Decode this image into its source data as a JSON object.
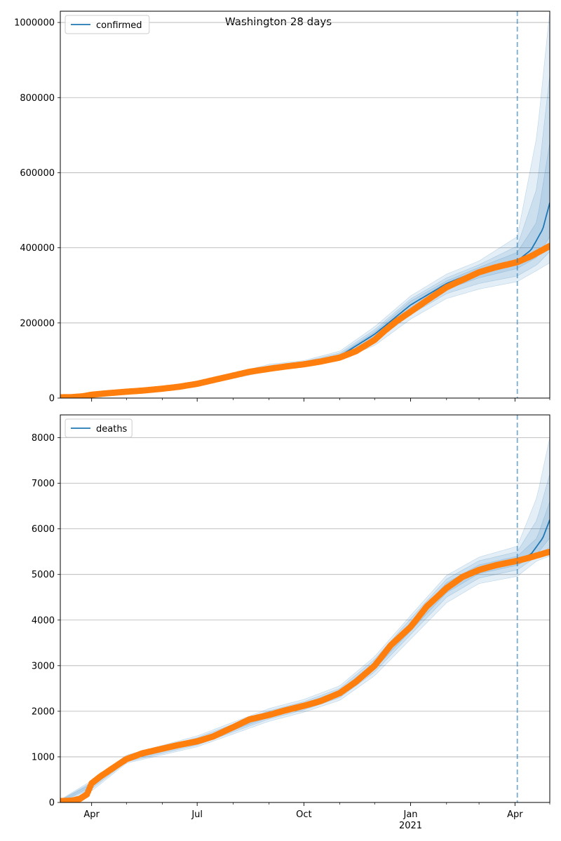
{
  "figure": {
    "title": "Washington 28 days"
  },
  "colors": {
    "model_line": "#1f77b4",
    "band": "#1f77b4",
    "observed": "#ff7f0e",
    "cutoff": "#1f77b4",
    "grid": "#b0b0b0"
  },
  "x_axis": {
    "tick_labels": [
      {
        "date": "2020-04-01",
        "label": "Apr",
        "sub": ""
      },
      {
        "date": "2020-07-01",
        "label": "Jul",
        "sub": ""
      },
      {
        "date": "2020-10-01",
        "label": "Oct",
        "sub": ""
      },
      {
        "date": "2021-01-01",
        "label": "Jan",
        "sub": "2021"
      },
      {
        "date": "2021-04-01",
        "label": "Apr",
        "sub": ""
      }
    ],
    "minor_ticks": [
      "2020-05-01",
      "2020-06-01",
      "2020-08-01",
      "2020-09-01",
      "2020-11-01",
      "2020-12-01",
      "2021-02-01",
      "2021-03-01",
      "2021-05-01"
    ],
    "xlim": [
      "2020-03-05",
      "2021-05-01"
    ],
    "forecast_cutoff": "2021-04-03"
  },
  "chart_data": [
    {
      "type": "line",
      "legend": "confirmed",
      "legend_position": "upper-left",
      "ylim": [
        0,
        1030000
      ],
      "yticks": [
        0,
        200000,
        400000,
        600000,
        800000,
        1000000
      ],
      "grid": "y",
      "model": {
        "name": "confirmed",
        "x": [
          "2020-03-05",
          "2020-04-01",
          "2020-05-01",
          "2020-06-01",
          "2020-07-01",
          "2020-08-01",
          "2020-09-01",
          "2020-10-01",
          "2020-11-01",
          "2020-12-01",
          "2021-01-01",
          "2021-02-01",
          "2021-03-01",
          "2021-04-03",
          "2021-04-15",
          "2021-04-25",
          "2021-05-01"
        ],
        "y": [
          2000,
          9000,
          18000,
          26000,
          37000,
          62000,
          80000,
          92000,
          112000,
          170000,
          248000,
          305000,
          340000,
          365000,
          395000,
          450000,
          520000
        ]
      },
      "bands": [
        {
          "x": [
            "2020-03-05",
            "2020-07-01",
            "2020-09-01",
            "2020-10-01",
            "2020-11-01",
            "2020-12-01",
            "2021-01-01",
            "2021-02-01",
            "2021-03-01",
            "2021-04-03",
            "2021-04-20",
            "2021-05-01"
          ],
          "lower": [
            0,
            32000,
            72000,
            86000,
            102000,
            140000,
            210000,
            265000,
            290000,
            310000,
            340000,
            360000
          ],
          "upper": [
            4000,
            42000,
            90000,
            100000,
            125000,
            190000,
            272000,
            330000,
            365000,
            430000,
            700000,
            1030000
          ]
        },
        {
          "x": [
            "2020-03-05",
            "2020-07-01",
            "2020-09-01",
            "2020-10-01",
            "2020-11-01",
            "2020-12-01",
            "2021-01-01",
            "2021-02-01",
            "2021-03-01",
            "2021-04-03",
            "2021-04-20",
            "2021-05-01"
          ],
          "lower": [
            1000,
            34000,
            75000,
            88000,
            106000,
            150000,
            222000,
            278000,
            305000,
            325000,
            355000,
            390000
          ],
          "upper": [
            3500,
            40000,
            86000,
            97000,
            120000,
            182000,
            264000,
            320000,
            355000,
            405000,
            560000,
            860000
          ]
        },
        {
          "x": [
            "2020-03-05",
            "2020-07-01",
            "2020-09-01",
            "2020-10-01",
            "2020-11-01",
            "2020-12-01",
            "2021-01-01",
            "2021-02-01",
            "2021-03-01",
            "2021-04-03",
            "2021-04-20",
            "2021-05-01"
          ],
          "lower": [
            1500,
            35500,
            77000,
            90000,
            109000,
            160000,
            235000,
            290000,
            320000,
            345000,
            375000,
            430000
          ],
          "upper": [
            3000,
            38500,
            83000,
            94000,
            116000,
            176000,
            258000,
            312000,
            348000,
            388000,
            470000,
            680000
          ]
        }
      ],
      "observed": {
        "name": "observed",
        "x": [
          "2020-03-05",
          "2020-03-15",
          "2020-03-25",
          "2020-04-01",
          "2020-04-15",
          "2020-05-01",
          "2020-05-15",
          "2020-06-01",
          "2020-06-15",
          "2020-07-01",
          "2020-07-15",
          "2020-08-01",
          "2020-08-15",
          "2020-09-01",
          "2020-09-15",
          "2020-10-01",
          "2020-10-15",
          "2020-11-01",
          "2020-11-15",
          "2020-12-01",
          "2020-12-10",
          "2020-12-20",
          "2021-01-01",
          "2021-01-15",
          "2021-02-01",
          "2021-02-15",
          "2021-03-01",
          "2021-03-15",
          "2021-04-03",
          "2021-04-15",
          "2021-05-01"
        ],
        "y": [
          2000,
          2500,
          5000,
          9000,
          13000,
          17000,
          20000,
          25000,
          30000,
          38000,
          48000,
          60000,
          70000,
          78000,
          84000,
          90000,
          97000,
          108000,
          125000,
          155000,
          180000,
          205000,
          230000,
          260000,
          295000,
          315000,
          335000,
          348000,
          362000,
          378000,
          405000
        ]
      }
    },
    {
      "type": "line",
      "legend": "deaths",
      "legend_position": "upper-left",
      "ylim": [
        0,
        8500
      ],
      "yticks": [
        0,
        1000,
        2000,
        3000,
        4000,
        5000,
        6000,
        7000,
        8000
      ],
      "grid": "y",
      "model": {
        "name": "deaths",
        "x": [
          "2020-03-05",
          "2020-03-20",
          "2020-03-28",
          "2020-04-01",
          "2020-04-15",
          "2020-05-01",
          "2020-05-15",
          "2020-06-01",
          "2020-06-15",
          "2020-07-01",
          "2020-07-15",
          "2020-08-01",
          "2020-08-15",
          "2020-09-01",
          "2020-09-15",
          "2020-10-01",
          "2020-10-15",
          "2020-11-01",
          "2020-11-15",
          "2020-12-01",
          "2020-12-15",
          "2021-01-01",
          "2021-01-15",
          "2021-02-01",
          "2021-02-15",
          "2021-03-01",
          "2021-03-15",
          "2021-04-03",
          "2021-04-15",
          "2021-04-25",
          "2021-05-01"
        ],
        "y": [
          30,
          60,
          180,
          380,
          720,
          950,
          1080,
          1180,
          1260,
          1340,
          1450,
          1650,
          1820,
          1920,
          2020,
          2120,
          2220,
          2400,
          2650,
          3000,
          3450,
          3850,
          4300,
          4700,
          4950,
          5100,
          5200,
          5300,
          5450,
          5800,
          6200
        ]
      },
      "bands": [
        {
          "x": [
            "2020-03-05",
            "2020-04-01",
            "2020-05-01",
            "2020-07-01",
            "2020-09-01",
            "2020-10-01",
            "2020-11-01",
            "2020-12-01",
            "2021-01-01",
            "2021-02-01",
            "2021-03-01",
            "2021-04-03",
            "2021-04-20",
            "2021-05-01"
          ],
          "lower": [
            0,
            250,
            860,
            1220,
            1780,
            1980,
            2240,
            2780,
            3580,
            4380,
            4800,
            4960,
            5300,
            5400
          ],
          "upper": [
            60,
            480,
            1040,
            1460,
            2060,
            2260,
            2560,
            3200,
            4100,
            4980,
            5380,
            5620,
            6700,
            8000
          ]
        },
        {
          "x": [
            "2020-03-05",
            "2020-04-01",
            "2020-05-01",
            "2020-07-01",
            "2020-09-01",
            "2020-10-01",
            "2020-11-01",
            "2020-12-01",
            "2021-01-01",
            "2021-02-01",
            "2021-03-01",
            "2021-04-03",
            "2021-04-20",
            "2021-05-01"
          ],
          "lower": [
            10,
            300,
            890,
            1260,
            1830,
            2030,
            2300,
            2860,
            3680,
            4500,
            4920,
            5100,
            5400,
            5600
          ],
          "upper": [
            50,
            440,
            1010,
            1420,
            2010,
            2210,
            2500,
            3140,
            4030,
            4900,
            5300,
            5500,
            6200,
            7200
          ]
        },
        {
          "x": [
            "2020-03-05",
            "2020-04-01",
            "2020-05-01",
            "2020-07-01",
            "2020-09-01",
            "2020-10-01",
            "2020-11-01",
            "2020-12-01",
            "2021-01-01",
            "2021-02-01",
            "2021-03-01",
            "2021-04-03",
            "2021-04-20",
            "2021-05-01"
          ],
          "lower": [
            20,
            340,
            920,
            1300,
            1870,
            2070,
            2350,
            2930,
            3760,
            4600,
            5020,
            5200,
            5450,
            5800
          ],
          "upper": [
            40,
            410,
            985,
            1385,
            1970,
            2170,
            2450,
            3070,
            3950,
            4820,
            5210,
            5400,
            5800,
            6600
          ]
        }
      ],
      "observed": {
        "name": "observed",
        "x": [
          "2020-03-05",
          "2020-03-15",
          "2020-03-22",
          "2020-03-28",
          "2020-04-01",
          "2020-04-08",
          "2020-04-15",
          "2020-04-22",
          "2020-05-01",
          "2020-05-15",
          "2020-06-01",
          "2020-06-15",
          "2020-07-01",
          "2020-07-15",
          "2020-08-01",
          "2020-08-15",
          "2020-09-01",
          "2020-09-15",
          "2020-10-01",
          "2020-10-15",
          "2020-11-01",
          "2020-11-15",
          "2020-12-01",
          "2020-12-15",
          "2021-01-01",
          "2021-01-15",
          "2021-02-01",
          "2021-02-15",
          "2021-03-01",
          "2021-03-15",
          "2021-04-03",
          "2021-04-15",
          "2021-05-01"
        ],
        "y": [
          30,
          40,
          80,
          180,
          420,
          560,
          680,
          800,
          950,
          1080,
          1180,
          1260,
          1340,
          1450,
          1650,
          1820,
          1920,
          2020,
          2120,
          2220,
          2400,
          2650,
          3000,
          3450,
          3850,
          4300,
          4700,
          4950,
          5100,
          5200,
          5300,
          5380,
          5500
        ]
      }
    }
  ]
}
